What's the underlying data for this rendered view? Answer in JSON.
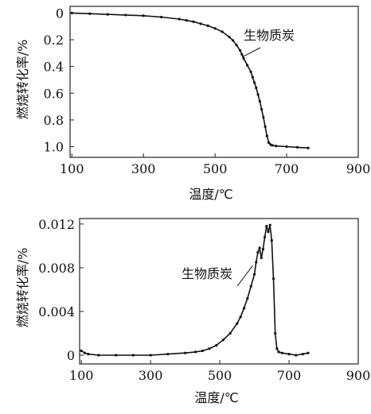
{
  "chart_data": [
    {
      "type": "line",
      "xlabel": "温度/℃",
      "ylabel": "燃烧转化率/%",
      "xlim": [
        95,
        900
      ],
      "ylim": [
        -0.05,
        1.08
      ],
      "y_reversed": true,
      "grid": false,
      "x_ticks": [
        100,
        300,
        500,
        700,
        900
      ],
      "y_ticks": [
        0,
        0.2,
        0.4,
        0.6,
        0.8,
        1.0
      ],
      "x_tick_labels": [
        "100",
        "300",
        "500",
        "700",
        "900"
      ],
      "y_tick_labels": [
        "0",
        "0.2",
        "0.4",
        "0.6",
        "0.8",
        "1.0"
      ],
      "annotation": {
        "text": "生物质炭",
        "x": 575,
        "y": 0.33
      },
      "series": [
        {
          "x": [
            100,
            150,
            200,
            250,
            300,
            350,
            400,
            420,
            440,
            460,
            480,
            500,
            520,
            540,
            550,
            560,
            570,
            575,
            580,
            590,
            600,
            605,
            610,
            615,
            620,
            625,
            630,
            635,
            640,
            645,
            650,
            655,
            660,
            670,
            700,
            730,
            760
          ],
          "y": [
            0.0,
            0.005,
            0.01,
            0.015,
            0.02,
            0.03,
            0.045,
            0.055,
            0.065,
            0.08,
            0.095,
            0.115,
            0.14,
            0.18,
            0.205,
            0.24,
            0.28,
            0.31,
            0.34,
            0.39,
            0.44,
            0.48,
            0.52,
            0.56,
            0.61,
            0.66,
            0.72,
            0.78,
            0.85,
            0.92,
            0.97,
            0.985,
            0.99,
            0.995,
            1.0,
            1.005,
            1.01
          ]
        }
      ]
    },
    {
      "type": "line",
      "xlabel": "温度/℃",
      "ylabel": "燃烧转化率/%",
      "xlim": [
        95,
        900
      ],
      "ylim": [
        -0.0008,
        0.0125
      ],
      "grid": false,
      "x_ticks": [
        100,
        300,
        500,
        700,
        900
      ],
      "y_ticks": [
        0,
        0.004,
        0.008,
        0.012
      ],
      "x_tick_labels": [
        "100",
        "300",
        "500",
        "700",
        "900"
      ],
      "y_tick_labels": [
        "0",
        "0.004",
        "0.008",
        "0.012"
      ],
      "annotation": {
        "text": "生物质炭",
        "x": 595,
        "y": 0.0082
      },
      "series": [
        {
          "x": [
            100,
            110,
            120,
            150,
            200,
            250,
            300,
            350,
            400,
            430,
            450,
            470,
            490,
            510,
            530,
            550,
            560,
            570,
            580,
            590,
            600,
            605,
            610,
            615,
            620,
            625,
            630,
            635,
            640,
            645,
            650,
            655,
            660,
            665,
            670,
            680,
            700,
            720,
            740,
            755
          ],
          "y": [
            0.0004,
            0.0002,
            0.0001,
            0.0,
            0.0,
            0.0,
            0.0,
            0.0001,
            0.0002,
            0.0003,
            0.0004,
            0.0006,
            0.0009,
            0.0014,
            0.002,
            0.0029,
            0.0035,
            0.0043,
            0.0052,
            0.0063,
            0.0074,
            0.0085,
            0.0094,
            0.0098,
            0.0089,
            0.0097,
            0.0108,
            0.0118,
            0.0113,
            0.0119,
            0.0105,
            0.007,
            0.002,
            0.0006,
            0.0003,
            0.0002,
            0.0001,
            0.0,
            0.0001,
            0.0002
          ]
        }
      ]
    }
  ]
}
